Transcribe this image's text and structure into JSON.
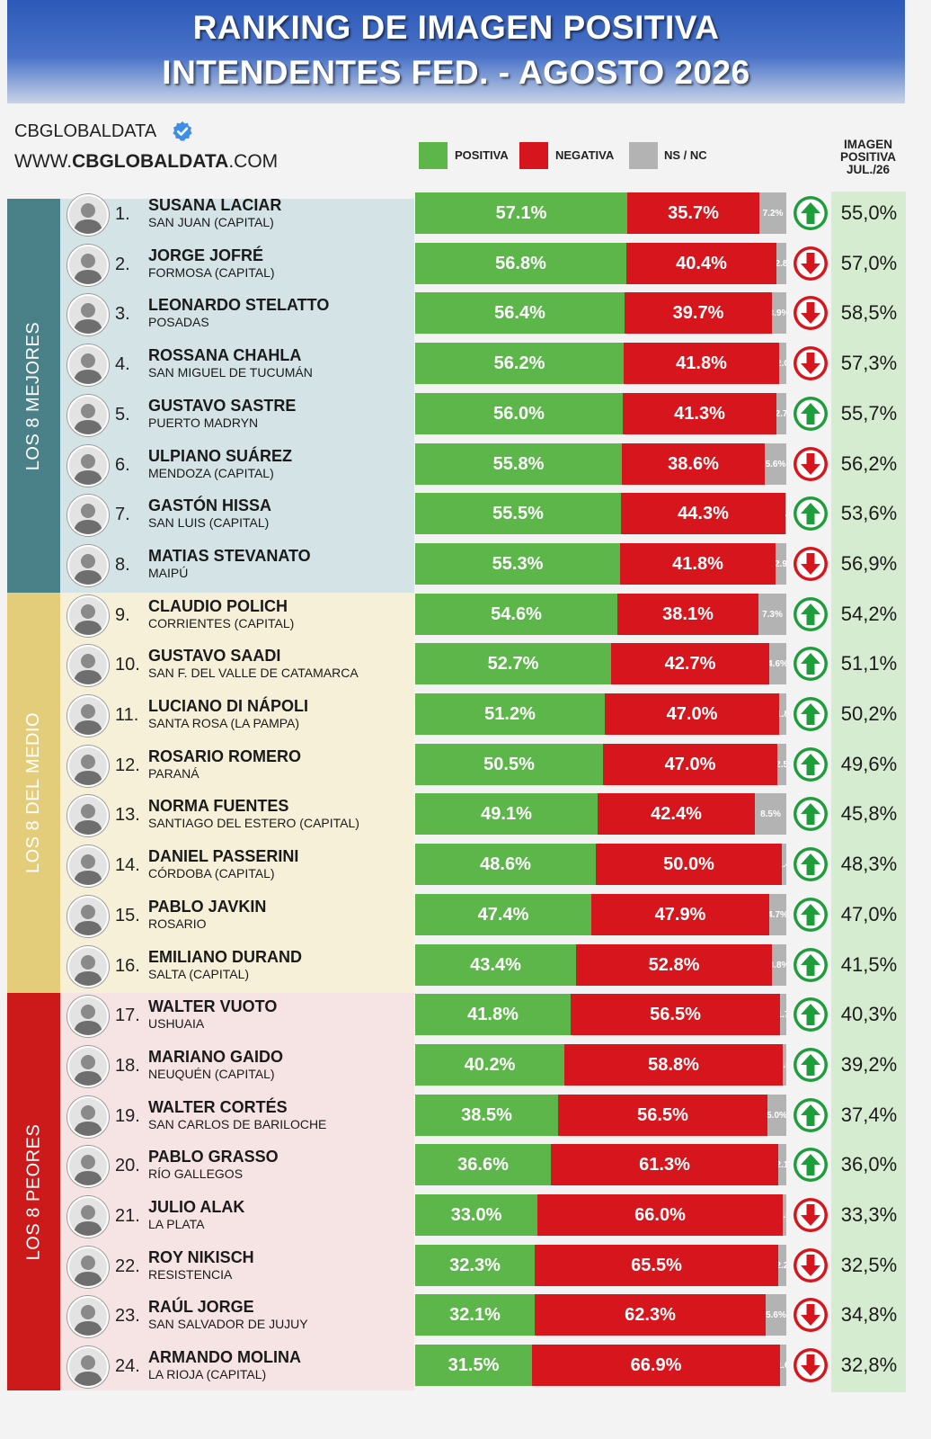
{
  "title_line1": "RANKING DE IMAGEN POSITIVA",
  "title_line2": "INTENDENTES FED. - AGOSTO 2026",
  "brand_name": "CBGLOBALDATA",
  "website_prefix": "WWW.",
  "website_bold": "CBGLOBALDATA",
  "website_suffix": ".COM",
  "previous_column_header": "IMAGEN POSITIVA JUL./26",
  "colors": {
    "positive": "#5cb64a",
    "negative": "#d7151c",
    "nsnc": "#b3b3b3",
    "arrow_up": "#1e9e3a",
    "arrow_down": "#d7151c"
  },
  "sections": [
    {
      "label": "LOS 8 MEJORES",
      "band_color": "#4a8088",
      "bg_color": "#d3e3e6",
      "start": 0,
      "end": 7
    },
    {
      "label": "LOS 8 DEL MEDIO",
      "band_color": "#e3cd7a",
      "bg_color": "#f6f0d9",
      "start": 8,
      "end": 15
    },
    {
      "label": "LOS 8 PEORES",
      "band_color": "#cc1a1a",
      "bg_color": "#f6e3e3",
      "start": 16,
      "end": 23
    }
  ],
  "chart_data": {
    "type": "bar",
    "stacked": true,
    "orientation": "horizontal",
    "title": "RANKING DE IMAGEN POSITIVA INTENDENTES FED. - AGOSTO 2026",
    "legend": [
      "POSITIVA",
      "NEGATIVA",
      "NS / NC"
    ],
    "legend_position": "top",
    "rows": [
      {
        "rank": "1.",
        "name": "SUSANA LACIAR",
        "city": "SAN JUAN (CAPITAL)",
        "positive": 57.1,
        "negative": 35.7,
        "nsnc": 7.2,
        "pos_label": "57.1%",
        "neg_label": "35.7%",
        "ns_label": "7.2%",
        "trend": "up",
        "previous": "55,0%"
      },
      {
        "rank": "2.",
        "name": "JORGE JOFRÉ",
        "city": "FORMOSA (CAPITAL)",
        "positive": 56.8,
        "negative": 40.4,
        "nsnc": 2.8,
        "pos_label": "56.8%",
        "neg_label": "40.4%",
        "ns_label": "2.8",
        "trend": "down",
        "previous": "57,0%"
      },
      {
        "rank": "3.",
        "name": "LEONARDO STELATTO",
        "city": "POSADAS",
        "positive": 56.4,
        "negative": 39.7,
        "nsnc": 3.9,
        "pos_label": "56.4%",
        "neg_label": "39.7%",
        "ns_label": "3.9%",
        "trend": "down",
        "previous": "58,5%"
      },
      {
        "rank": "4.",
        "name": "ROSSANA CHAHLA",
        "city": "SAN MIGUEL DE TUCUMÁN",
        "positive": 56.2,
        "negative": 41.8,
        "nsnc": 2.0,
        "pos_label": "56.2%",
        "neg_label": "41.8%",
        "ns_label": "2.0",
        "trend": "down",
        "previous": "57,3%"
      },
      {
        "rank": "5.",
        "name": "GUSTAVO SASTRE",
        "city": "PUERTO MADRYN",
        "positive": 56.0,
        "negative": 41.3,
        "nsnc": 2.7,
        "pos_label": "56.0%",
        "neg_label": "41.3%",
        "ns_label": "2.7",
        "trend": "up",
        "previous": "55,7%"
      },
      {
        "rank": "6.",
        "name": "ULPIANO SUÁREZ",
        "city": "MENDOZA (CAPITAL)",
        "positive": 55.8,
        "negative": 38.6,
        "nsnc": 5.6,
        "pos_label": "55.8%",
        "neg_label": "38.6%",
        "ns_label": "5.6%",
        "trend": "down",
        "previous": "56,2%"
      },
      {
        "rank": "7.",
        "name": "GASTÓN HISSA",
        "city": "SAN LUIS (CAPITAL)",
        "positive": 55.5,
        "negative": 44.3,
        "nsnc": 0.2,
        "pos_label": "55.5%",
        "neg_label": "44.3%",
        "ns_label": "0.2",
        "trend": "up",
        "previous": "53,6%"
      },
      {
        "rank": "8.",
        "name": "MATIAS STEVANATO",
        "city": "MAIPÚ",
        "positive": 55.3,
        "negative": 41.8,
        "nsnc": 2.9,
        "pos_label": "55.3%",
        "neg_label": "41.8%",
        "ns_label": "2.9",
        "trend": "down",
        "previous": "56,9%"
      },
      {
        "rank": "9.",
        "name": "CLAUDIO POLICH",
        "city": "CORRIENTES (CAPITAL)",
        "positive": 54.6,
        "negative": 38.1,
        "nsnc": 7.3,
        "pos_label": "54.6%",
        "neg_label": "38.1%",
        "ns_label": "7.3%",
        "trend": "up",
        "previous": "54,2%"
      },
      {
        "rank": "10.",
        "name": "GUSTAVO SAADI",
        "city": "SAN F. DEL VALLE DE CATAMARCA",
        "positive": 52.7,
        "negative": 42.7,
        "nsnc": 4.6,
        "pos_label": "52.7%",
        "neg_label": "42.7%",
        "ns_label": "4.6%",
        "trend": "up",
        "previous": "51,1%"
      },
      {
        "rank": "11.",
        "name": "LUCIANO DI NÁPOLI",
        "city": "SANTA ROSA (LA PAMPA)",
        "positive": 51.2,
        "negative": 47.0,
        "nsnc": 1.8,
        "pos_label": "51.2%",
        "neg_label": "47.0%",
        "ns_label": "1.8",
        "trend": "up",
        "previous": "50,2%"
      },
      {
        "rank": "12.",
        "name": "ROSARIO ROMERO",
        "city": "PARANÁ",
        "positive": 50.5,
        "negative": 47.0,
        "nsnc": 2.5,
        "pos_label": "50.5%",
        "neg_label": "47.0%",
        "ns_label": "2.5",
        "trend": "up",
        "previous": "49,6%"
      },
      {
        "rank": "13.",
        "name": "NORMA FUENTES",
        "city": "SANTIAGO DEL ESTERO (CAPITAL)",
        "positive": 49.1,
        "negative": 42.4,
        "nsnc": 8.5,
        "pos_label": "49.1%",
        "neg_label": "42.4%",
        "ns_label": "8.5%",
        "trend": "up",
        "previous": "45,8%"
      },
      {
        "rank": "14.",
        "name": "DANIEL PASSERINI",
        "city": "CÓRDOBA (CAPITAL)",
        "positive": 48.6,
        "negative": 50.0,
        "nsnc": 1.4,
        "pos_label": "48.6%",
        "neg_label": "50.0%",
        "ns_label": "1.4",
        "trend": "up",
        "previous": "48,3%"
      },
      {
        "rank": "15.",
        "name": "PABLO JAVKIN",
        "city": "ROSARIO",
        "positive": 47.4,
        "negative": 47.9,
        "nsnc": 4.7,
        "pos_label": "47.4%",
        "neg_label": "47.9%",
        "ns_label": "4.7%",
        "trend": "up",
        "previous": "47,0%"
      },
      {
        "rank": "16.",
        "name": "EMILIANO DURAND",
        "city": "SALTA (CAPITAL)",
        "positive": 43.4,
        "negative": 52.8,
        "nsnc": 3.8,
        "pos_label": "43.4%",
        "neg_label": "52.8%",
        "ns_label": "3.8%",
        "trend": "up",
        "previous": "41,5%"
      },
      {
        "rank": "17.",
        "name": "WALTER VUOTO",
        "city": "USHUAIA",
        "positive": 41.8,
        "negative": 56.5,
        "nsnc": 1.7,
        "pos_label": "41.8%",
        "neg_label": "56.5%",
        "ns_label": "1.7",
        "trend": "up",
        "previous": "40,3%"
      },
      {
        "rank": "18.",
        "name": "MARIANO GAIDO",
        "city": "NEUQUÉN (CAPITAL)",
        "positive": 40.2,
        "negative": 58.8,
        "nsnc": 1.0,
        "pos_label": "40.2%",
        "neg_label": "58.8%",
        "ns_label": "1.0",
        "trend": "up",
        "previous": "39,2%"
      },
      {
        "rank": "19.",
        "name": "WALTER CORTÉS",
        "city": "SAN CARLOS DE BARILOCHE",
        "positive": 38.5,
        "negative": 56.5,
        "nsnc": 5.0,
        "pos_label": "38.5%",
        "neg_label": "56.5%",
        "ns_label": "5.0%",
        "trend": "up",
        "previous": "37,4%"
      },
      {
        "rank": "20.",
        "name": "PABLO GRASSO",
        "city": "RÍO GALLEGOS",
        "positive": 36.6,
        "negative": 61.3,
        "nsnc": 2.1,
        "pos_label": "36.6%",
        "neg_label": "61.3%",
        "ns_label": "2.1",
        "trend": "up",
        "previous": "36,0%"
      },
      {
        "rank": "21.",
        "name": "JULIO ALAK",
        "city": "LA PLATA",
        "positive": 33.0,
        "negative": 66.0,
        "nsnc": 1.0,
        "pos_label": "33.0%",
        "neg_label": "66.0%",
        "ns_label": "1.0",
        "trend": "down",
        "previous": "33,3%"
      },
      {
        "rank": "22.",
        "name": "ROY NIKISCH",
        "city": "RESISTENCIA",
        "positive": 32.3,
        "negative": 65.5,
        "nsnc": 2.2,
        "pos_label": "32.3%",
        "neg_label": "65.5%",
        "ns_label": "2.2",
        "trend": "down",
        "previous": "32,5%"
      },
      {
        "rank": "23.",
        "name": "RAÚL JORGE",
        "city": "SAN SALVADOR DE JUJUY",
        "positive": 32.1,
        "negative": 62.3,
        "nsnc": 5.6,
        "pos_label": "32.1%",
        "neg_label": "62.3%",
        "ns_label": "5.6%",
        "trend": "down",
        "previous": "34,8%"
      },
      {
        "rank": "24.",
        "name": "ARMANDO MOLINA",
        "city": "LA RIOJA (CAPITAL)",
        "positive": 31.5,
        "negative": 66.9,
        "nsnc": 1.6,
        "pos_label": "31.5%",
        "neg_label": "66.9%",
        "ns_label": "1.6",
        "trend": "down",
        "previous": "32,8%"
      }
    ]
  }
}
